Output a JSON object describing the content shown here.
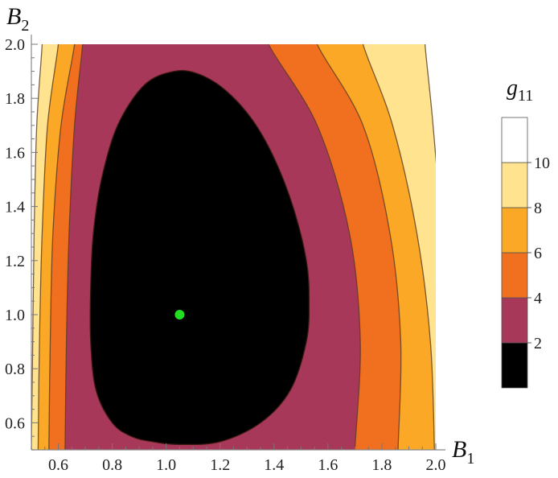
{
  "chart_data": {
    "type": "contour",
    "title": "",
    "xlabel": {
      "main": "B",
      "sub": "1"
    },
    "ylabel": {
      "main": "B",
      "sub": "2"
    },
    "xlim": [
      0.5,
      2.0
    ],
    "ylim": [
      0.5,
      2.0
    ],
    "x_ticks": [
      "0.6",
      "0.8",
      "1.0",
      "1.2",
      "1.4",
      "1.6",
      "1.8",
      "2.0"
    ],
    "y_ticks": [
      "0.6",
      "0.8",
      "1.0",
      "1.2",
      "1.4",
      "1.6",
      "1.8",
      "2.0"
    ],
    "legend_title": {
      "main": "g",
      "sub": "11"
    },
    "legend_placement": "right",
    "contour_levels": [
      2,
      4,
      6,
      8,
      10
    ],
    "legend_labels": [
      "2",
      "4",
      "6",
      "8",
      "10"
    ],
    "bands": [
      {
        "range": [
          0,
          2
        ],
        "color": "#000000"
      },
      {
        "range": [
          2,
          4
        ],
        "color": "#A8385A"
      },
      {
        "range": [
          4,
          6
        ],
        "color": "#F07020"
      },
      {
        "range": [
          6,
          8
        ],
        "color": "#FBA826"
      },
      {
        "range": [
          8,
          10
        ],
        "color": "#FFE38F"
      },
      {
        "range": [
          10,
          12
        ],
        "color": "#FFFFFF"
      }
    ],
    "minimum_point": {
      "x": 1.05,
      "y": 1.0,
      "color": "#22DD22"
    },
    "contours": [
      {
        "level": 2,
        "points": [
          [
            0.95,
            0.53
          ],
          [
            1.05,
            0.52
          ],
          [
            1.2,
            0.53
          ],
          [
            1.35,
            0.6
          ],
          [
            1.46,
            0.72
          ],
          [
            1.52,
            0.9
          ],
          [
            1.53,
            1.05
          ],
          [
            1.52,
            1.2
          ],
          [
            1.47,
            1.4
          ],
          [
            1.4,
            1.58
          ],
          [
            1.32,
            1.72
          ],
          [
            1.22,
            1.83
          ],
          [
            1.12,
            1.89
          ],
          [
            1.03,
            1.9
          ],
          [
            0.92,
            1.85
          ],
          [
            0.82,
            1.7
          ],
          [
            0.76,
            1.5
          ],
          [
            0.73,
            1.3
          ],
          [
            0.72,
            1.1
          ],
          [
            0.72,
            0.9
          ],
          [
            0.74,
            0.72
          ],
          [
            0.8,
            0.6
          ],
          [
            0.87,
            0.55
          ]
        ]
      },
      {
        "level": 4,
        "x_left": [
          0.625,
          0.63,
          0.64,
          0.66,
          0.69
        ],
        "x_right": [
          1.7,
          1.72,
          1.68,
          1.56,
          1.38
        ]
      },
      {
        "level": 6,
        "x_left": [
          0.565,
          0.57,
          0.58,
          0.61,
          0.66
        ],
        "x_right": [
          1.86,
          1.87,
          1.83,
          1.73,
          1.56
        ]
      },
      {
        "level": 8,
        "x_left": [
          0.525,
          0.53,
          0.54,
          0.56,
          0.6
        ],
        "x_right": [
          1.995,
          1.98,
          1.93,
          1.84,
          1.73
        ]
      },
      {
        "level": 10,
        "x_left": [
          0.5,
          0.505,
          0.51,
          0.52,
          0.54
        ],
        "x_right": [
          2.02,
          2.03,
          2.02,
          1.99,
          1.96
        ]
      }
    ],
    "open_contour_y": [
      0.5,
      0.9,
      1.3,
      1.7,
      2.0
    ]
  }
}
